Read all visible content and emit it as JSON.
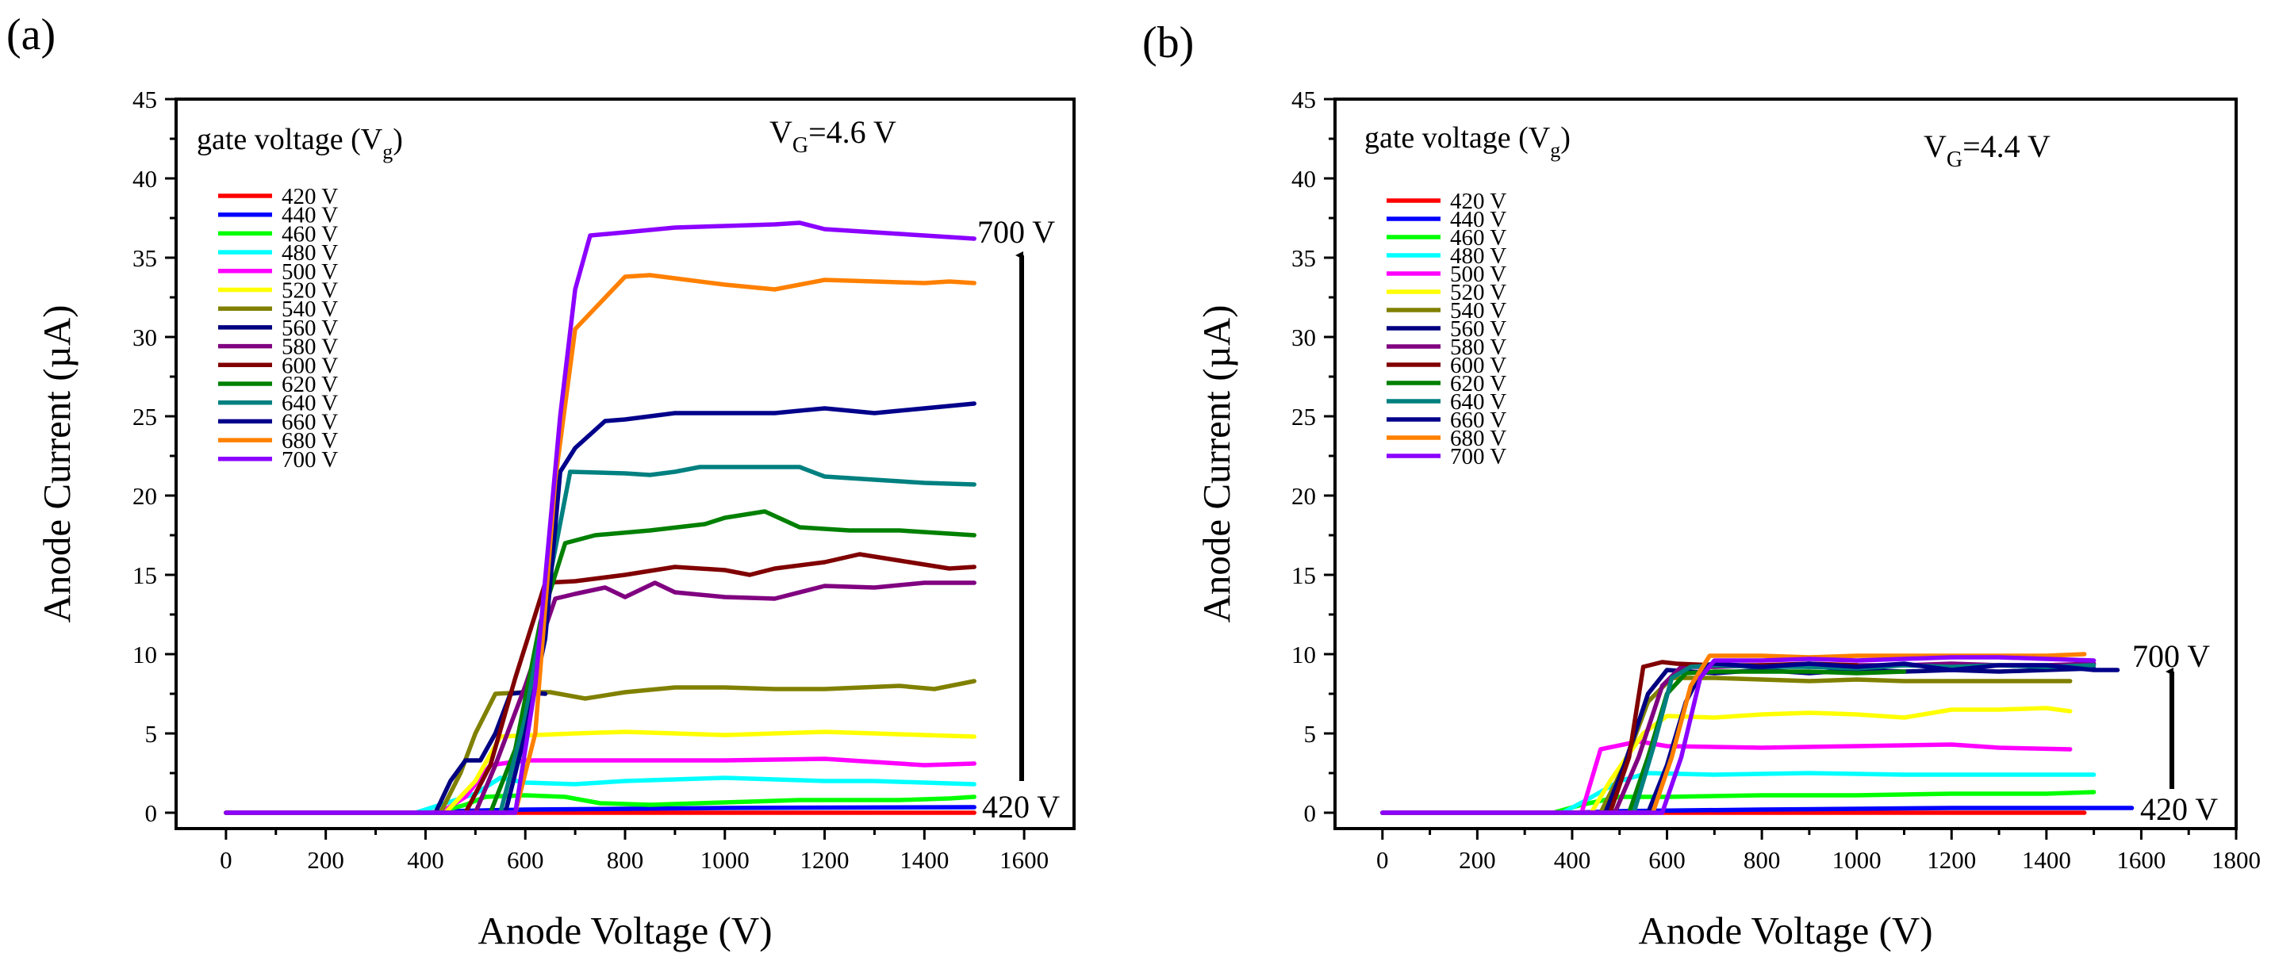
{
  "chart_data": [
    {
      "panel": "(a)",
      "type": "line",
      "xlabel": "Anode Voltage (V)",
      "ylabel": "Anode Current (µA)",
      "xlim": [
        -100,
        1700
      ],
      "ylim": [
        -1,
        45
      ],
      "xticks": [
        0,
        200,
        400,
        600,
        800,
        1000,
        1200,
        1400,
        1600
      ],
      "yticks": [
        0,
        5,
        10,
        15,
        20,
        25,
        30,
        35,
        40,
        45
      ],
      "legend_title": "gate voltage (V",
      "legend_title_sub": "g",
      "legend_title_end": ")",
      "gate_label": "V",
      "gate_label_sub": "G",
      "gate_label_value": "=4.6 V",
      "annotation_top": "700 V",
      "annotation_bottom": "420 V",
      "series": [
        {
          "name": "420 V",
          "color": "#ff0000",
          "x": [
            0,
            1500
          ],
          "y": [
            0,
            0
          ]
        },
        {
          "name": "440 V",
          "color": "#0000ff",
          "x": [
            0,
            400,
            450,
            600,
            1000,
            1500
          ],
          "y": [
            0,
            0,
            0.1,
            0.2,
            0.3,
            0.35
          ]
        },
        {
          "name": "460 V",
          "color": "#00ff00",
          "x": [
            0,
            420,
            480,
            520,
            600,
            680,
            750,
            850,
            950,
            1050,
            1150,
            1250,
            1350,
            1450,
            1500
          ],
          "y": [
            0,
            0,
            0.5,
            1.0,
            1.1,
            1.0,
            0.6,
            0.5,
            0.6,
            0.7,
            0.8,
            0.8,
            0.8,
            0.9,
            1.0
          ]
        },
        {
          "name": "480 V",
          "color": "#00ffff",
          "x": [
            0,
            380,
            430,
            500,
            550,
            600,
            700,
            800,
            900,
            1000,
            1100,
            1200,
            1300,
            1400,
            1500
          ],
          "y": [
            0,
            0,
            0.5,
            1.2,
            2.2,
            1.9,
            1.8,
            2.0,
            2.1,
            2.2,
            2.1,
            2.0,
            2.0,
            1.9,
            1.8
          ]
        },
        {
          "name": "500 V",
          "color": "#ff00ff",
          "x": [
            0,
            430,
            480,
            530,
            600,
            800,
            1000,
            1200,
            1300,
            1400,
            1500
          ],
          "y": [
            0,
            0,
            1.0,
            3.0,
            3.3,
            3.3,
            3.3,
            3.4,
            3.2,
            3.0,
            3.1
          ]
        },
        {
          "name": "520 V",
          "color": "#ffff00",
          "x": [
            0,
            440,
            500,
            550,
            620,
            700,
            800,
            900,
            1000,
            1100,
            1200,
            1300,
            1400,
            1500
          ],
          "y": [
            0,
            0,
            2.0,
            4.8,
            4.9,
            5.0,
            5.1,
            5.0,
            4.9,
            5.0,
            5.1,
            5.0,
            4.9,
            4.8
          ]
        },
        {
          "name": "540 V",
          "color": "#808000",
          "x": [
            0,
            430,
            470,
            500,
            540,
            600,
            650,
            720,
            800,
            900,
            1000,
            1100,
            1200,
            1350,
            1420,
            1500
          ],
          "y": [
            0,
            0,
            2.5,
            5.0,
            7.5,
            7.6,
            7.6,
            7.2,
            7.6,
            7.9,
            7.9,
            7.8,
            7.8,
            8.0,
            7.8,
            8.3
          ]
        },
        {
          "name": "560 V",
          "color": "#000080",
          "x": [
            0,
            420,
            450,
            480,
            510,
            540,
            570,
            600,
            640
          ],
          "y": [
            0,
            0,
            2.0,
            3.3,
            3.3,
            5.0,
            7.5,
            7.6,
            7.5
          ]
        },
        {
          "name": "580 V",
          "color": "#800080",
          "x": [
            0,
            500,
            540,
            600,
            660,
            700,
            760,
            800,
            860,
            900,
            1000,
            1100,
            1200,
            1300,
            1400,
            1500
          ],
          "y": [
            0,
            0,
            3.0,
            8.0,
            13.5,
            13.8,
            14.2,
            13.6,
            14.5,
            13.9,
            13.6,
            13.5,
            14.3,
            14.2,
            14.5,
            14.5
          ]
        },
        {
          "name": "600 V",
          "color": "#800000",
          "x": [
            0,
            480,
            530,
            580,
            640,
            700,
            800,
            900,
            1000,
            1050,
            1100,
            1200,
            1270,
            1350,
            1450,
            1500
          ],
          "y": [
            0,
            0,
            3.0,
            8.5,
            14.5,
            14.6,
            15.0,
            15.5,
            15.3,
            15.0,
            15.4,
            15.8,
            16.3,
            15.9,
            15.4,
            15.5
          ]
        },
        {
          "name": "620 V",
          "color": "#008000",
          "x": [
            0,
            530,
            580,
            630,
            680,
            740,
            850,
            960,
            1000,
            1080,
            1150,
            1250,
            1350,
            1500
          ],
          "y": [
            0,
            0,
            4.0,
            12.0,
            17.0,
            17.5,
            17.8,
            18.2,
            18.6,
            19.0,
            18.0,
            17.8,
            17.8,
            17.5
          ]
        },
        {
          "name": "640 V",
          "color": "#008080",
          "x": [
            0,
            550,
            600,
            650,
            690,
            800,
            850,
            900,
            950,
            1000,
            1050,
            1100,
            1150,
            1200,
            1300,
            1400,
            1500
          ],
          "y": [
            0,
            0,
            6.0,
            15.0,
            21.5,
            21.4,
            21.3,
            21.5,
            21.8,
            21.8,
            21.8,
            21.8,
            21.8,
            21.2,
            21.0,
            20.8,
            20.7
          ]
        },
        {
          "name": "660 V",
          "color": "#00008b",
          "x": [
            0,
            560,
            600,
            640,
            670,
            700,
            760,
            800,
            900,
            1000,
            1050,
            1100,
            1200,
            1300,
            1400,
            1500
          ],
          "y": [
            0,
            0,
            5.0,
            11.0,
            21.5,
            23.0,
            24.7,
            24.8,
            25.2,
            25.2,
            25.2,
            25.2,
            25.5,
            25.2,
            25.5,
            25.8
          ]
        },
        {
          "name": "680 V",
          "color": "#ff8000",
          "x": [
            0,
            580,
            620,
            660,
            700,
            800,
            850,
            900,
            1000,
            1100,
            1150,
            1200,
            1300,
            1400,
            1450,
            1500
          ],
          "y": [
            0,
            0,
            5.0,
            21.0,
            30.5,
            33.8,
            33.9,
            33.7,
            33.3,
            33.0,
            33.3,
            33.6,
            33.5,
            33.4,
            33.5,
            33.4
          ]
        },
        {
          "name": "700 V",
          "color": "#8b00ff",
          "x": [
            0,
            580,
            620,
            670,
            700,
            730,
            800,
            900,
            1000,
            1100,
            1150,
            1200,
            1300,
            1400,
            1500
          ],
          "y": [
            0,
            0,
            8.0,
            25.0,
            33.0,
            36.4,
            36.6,
            36.9,
            37.0,
            37.1,
            37.2,
            36.8,
            36.6,
            36.4,
            36.2
          ]
        }
      ]
    },
    {
      "panel": "(b)",
      "type": "line",
      "xlabel": "Anode Voltage (V)",
      "ylabel": "Anode Current (µA)",
      "xlim": [
        -100,
        1800
      ],
      "ylim": [
        -1,
        45
      ],
      "xticks": [
        0,
        200,
        400,
        600,
        800,
        1000,
        1200,
        1400,
        1600,
        1800
      ],
      "yticks": [
        0,
        5,
        10,
        15,
        20,
        25,
        30,
        35,
        40,
        45
      ],
      "legend_title": "gate voltage (V",
      "legend_title_sub": "g",
      "legend_title_end": ")",
      "gate_label": "V",
      "gate_label_sub": "G",
      "gate_label_value": "=4.4 V",
      "annotation_top": "700 V",
      "annotation_bottom": "420 V",
      "series": [
        {
          "name": "420 V",
          "color": "#ff0000",
          "x": [
            0,
            1480
          ],
          "y": [
            0,
            0
          ]
        },
        {
          "name": "440 V",
          "color": "#0000ff",
          "x": [
            0,
            400,
            500,
            800,
            1200,
            1580
          ],
          "y": [
            0,
            0,
            0.1,
            0.2,
            0.3,
            0.3
          ]
        },
        {
          "name": "460 V",
          "color": "#00ff00",
          "x": [
            0,
            360,
            420,
            500,
            600,
            800,
            1000,
            1200,
            1400,
            1500
          ],
          "y": [
            0,
            0,
            0.5,
            1.0,
            1.0,
            1.1,
            1.1,
            1.2,
            1.2,
            1.3
          ]
        },
        {
          "name": "480 V",
          "color": "#00ffff",
          "x": [
            0,
            380,
            430,
            500,
            560,
            700,
            900,
            1100,
            1300,
            1500
          ],
          "y": [
            0,
            0,
            0.8,
            2.0,
            2.5,
            2.4,
            2.5,
            2.4,
            2.4,
            2.4
          ]
        },
        {
          "name": "500 V",
          "color": "#ff00ff",
          "x": [
            0,
            420,
            460,
            540,
            600,
            800,
            1000,
            1200,
            1300,
            1450
          ],
          "y": [
            0,
            0,
            4.0,
            4.5,
            4.2,
            4.1,
            4.2,
            4.3,
            4.1,
            4.0
          ]
        },
        {
          "name": "520 V",
          "color": "#ffff00",
          "x": [
            0,
            440,
            480,
            550,
            600,
            700,
            800,
            900,
            1000,
            1100,
            1200,
            1300,
            1400,
            1450
          ],
          "y": [
            0,
            0,
            2.0,
            5.0,
            6.1,
            6.0,
            6.2,
            6.3,
            6.2,
            6.0,
            6.5,
            6.5,
            6.6,
            6.4
          ]
        },
        {
          "name": "540 V",
          "color": "#808000",
          "x": [
            0,
            460,
            510,
            560,
            610,
            700,
            800,
            900,
            1000,
            1100,
            1200,
            1300,
            1400,
            1450
          ],
          "y": [
            0,
            0,
            3.0,
            7.0,
            8.5,
            8.5,
            8.4,
            8.3,
            8.4,
            8.3,
            8.3,
            8.3,
            8.3,
            8.3
          ]
        },
        {
          "name": "560 V",
          "color": "#000080",
          "x": [
            0,
            470,
            510,
            560,
            600,
            700,
            800,
            900,
            1000,
            1100,
            1200,
            1300,
            1400,
            1500
          ],
          "y": [
            0,
            0,
            3.0,
            7.5,
            9.0,
            8.8,
            9.0,
            8.8,
            9.0,
            8.9,
            9.0,
            8.9,
            9.0,
            9.1
          ]
        },
        {
          "name": "580 V",
          "color": "#800080",
          "x": [
            0,
            490,
            540,
            590,
            630,
            700,
            800,
            900,
            1000,
            1100,
            1200,
            1300,
            1400,
            1500
          ],
          "y": [
            0,
            0,
            3.5,
            8.0,
            9.2,
            9.2,
            9.3,
            9.2,
            9.3,
            9.3,
            9.4,
            9.3,
            9.3,
            9.4
          ]
        },
        {
          "name": "600 V",
          "color": "#800000",
          "x": [
            0,
            480,
            520,
            550,
            590,
            620,
            700,
            800,
            900,
            1000
          ],
          "y": [
            0,
            0,
            3.5,
            9.2,
            9.5,
            9.4,
            9.3,
            9.3,
            9.4,
            9.3
          ]
        },
        {
          "name": "620 V",
          "color": "#008000",
          "x": [
            0,
            520,
            560,
            600,
            640,
            700,
            800,
            900,
            1000,
            1100
          ],
          "y": [
            0,
            0,
            3.5,
            7.5,
            8.8,
            8.9,
            8.9,
            8.9,
            8.8,
            8.9
          ]
        },
        {
          "name": "640 V",
          "color": "#008080",
          "x": [
            0,
            530,
            570,
            610,
            650,
            700,
            800,
            900,
            1000,
            1100,
            1200,
            1300,
            1400,
            1500
          ],
          "y": [
            0,
            0,
            4.0,
            8.5,
            9.2,
            9.3,
            9.2,
            9.2,
            9.1,
            9.3,
            9.2,
            9.3,
            9.2,
            9.3
          ]
        },
        {
          "name": "660 V",
          "color": "#00008b",
          "x": [
            0,
            560,
            600,
            640,
            680,
            700,
            800,
            900,
            1000,
            1100,
            1200,
            1300,
            1400,
            1500,
            1550
          ],
          "y": [
            0,
            0,
            3.0,
            7.0,
            9.3,
            9.4,
            9.2,
            9.4,
            9.2,
            9.4,
            9.0,
            9.3,
            9.3,
            9.0,
            9.0
          ]
        },
        {
          "name": "680 V",
          "color": "#ff8000",
          "x": [
            0,
            570,
            610,
            650,
            690,
            800,
            900,
            1000,
            1100,
            1200,
            1300,
            1400,
            1480
          ],
          "y": [
            0,
            0,
            3.5,
            8.0,
            9.9,
            9.9,
            9.8,
            9.9,
            9.9,
            9.9,
            9.9,
            9.9,
            10.0
          ]
        },
        {
          "name": "700 V",
          "color": "#8b00ff",
          "x": [
            0,
            590,
            630,
            670,
            700,
            800,
            900,
            1000,
            1100,
            1200,
            1300,
            1400,
            1500
          ],
          "y": [
            0,
            0,
            3.5,
            8.5,
            9.6,
            9.6,
            9.7,
            9.6,
            9.7,
            9.8,
            9.8,
            9.7,
            9.6
          ]
        }
      ]
    }
  ]
}
